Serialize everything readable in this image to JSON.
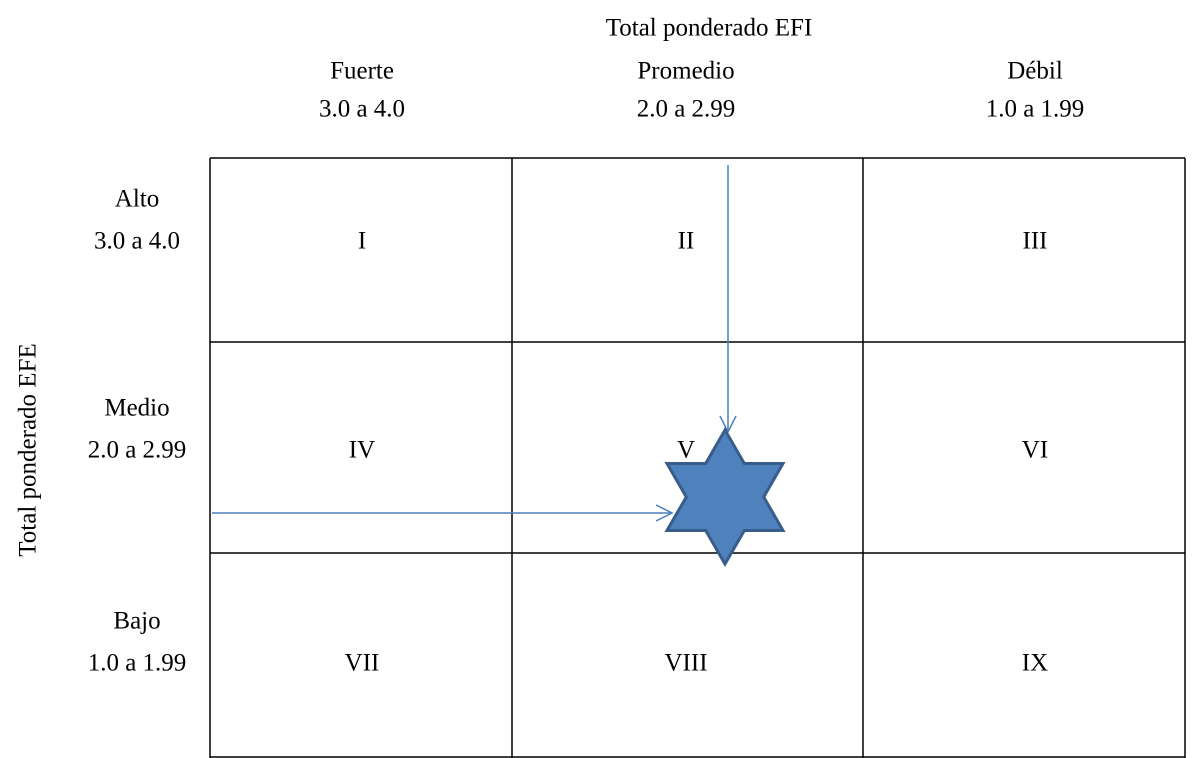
{
  "x_axis_title": "Total ponderado EFI",
  "columns": [
    {
      "label": "Fuerte",
      "range": "3.0 a 4.0"
    },
    {
      "label": "Promedio",
      "range": "2.0 a 2.99"
    },
    {
      "label": "Débil",
      "range": "1.0 a 1.99"
    }
  ],
  "y_axis_title": "Total ponderado EFE",
  "rows": [
    {
      "label": "Alto",
      "range": "3.0 a 4.0"
    },
    {
      "label": "Medio",
      "range": "2.0 a 2.99"
    },
    {
      "label": "Bajo",
      "range": "1.0 a 1.99"
    }
  ],
  "cells": [
    [
      "I",
      "II",
      "III"
    ],
    [
      "IV",
      "V",
      "VI"
    ],
    [
      "VII",
      "VIII",
      "IX"
    ]
  ]
}
